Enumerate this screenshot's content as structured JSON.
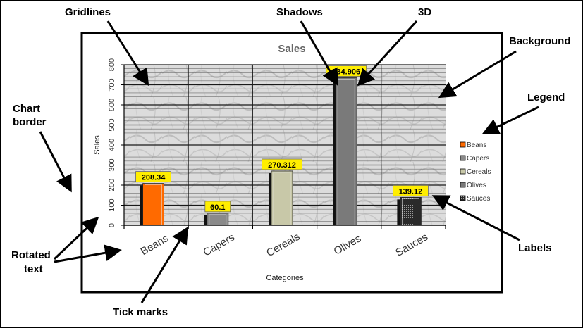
{
  "annotations": {
    "gridlines": "Gridlines",
    "shadows": "Shadows",
    "three_d": "3D",
    "background": "Background",
    "legend": "Legend",
    "chart_border_line1": "Chart",
    "chart_border_line2": "border",
    "rotated_text_line1": "Rotated",
    "rotated_text_line2": "text",
    "tick_marks": "Tick marks",
    "labels": "Labels"
  },
  "chart_data": {
    "type": "bar",
    "title": "Sales",
    "xlabel": "Categories",
    "ylabel": "Sales",
    "ylim": [
      0,
      800
    ],
    "yticks": [
      0,
      100,
      200,
      300,
      400,
      500,
      600,
      700,
      800
    ],
    "categories": [
      "Beans",
      "Capers",
      "Cereals",
      "Olives",
      "Sauces"
    ],
    "values": [
      208.34,
      60.1,
      270.312,
      734.906,
      139.12
    ],
    "value_labels": [
      "208.34",
      "60.1",
      "270.312",
      "734.906",
      "139.12"
    ],
    "legend": [
      "Beans",
      "Capers",
      "Cereals",
      "Olives",
      "Sauces"
    ],
    "legend_position": "right",
    "grid": true,
    "colors": [
      "#ff6a00",
      "#8a8a8a",
      "#c8c8a8",
      "#7a7a7a",
      "#303030"
    ],
    "label_background": "#ffee00"
  }
}
